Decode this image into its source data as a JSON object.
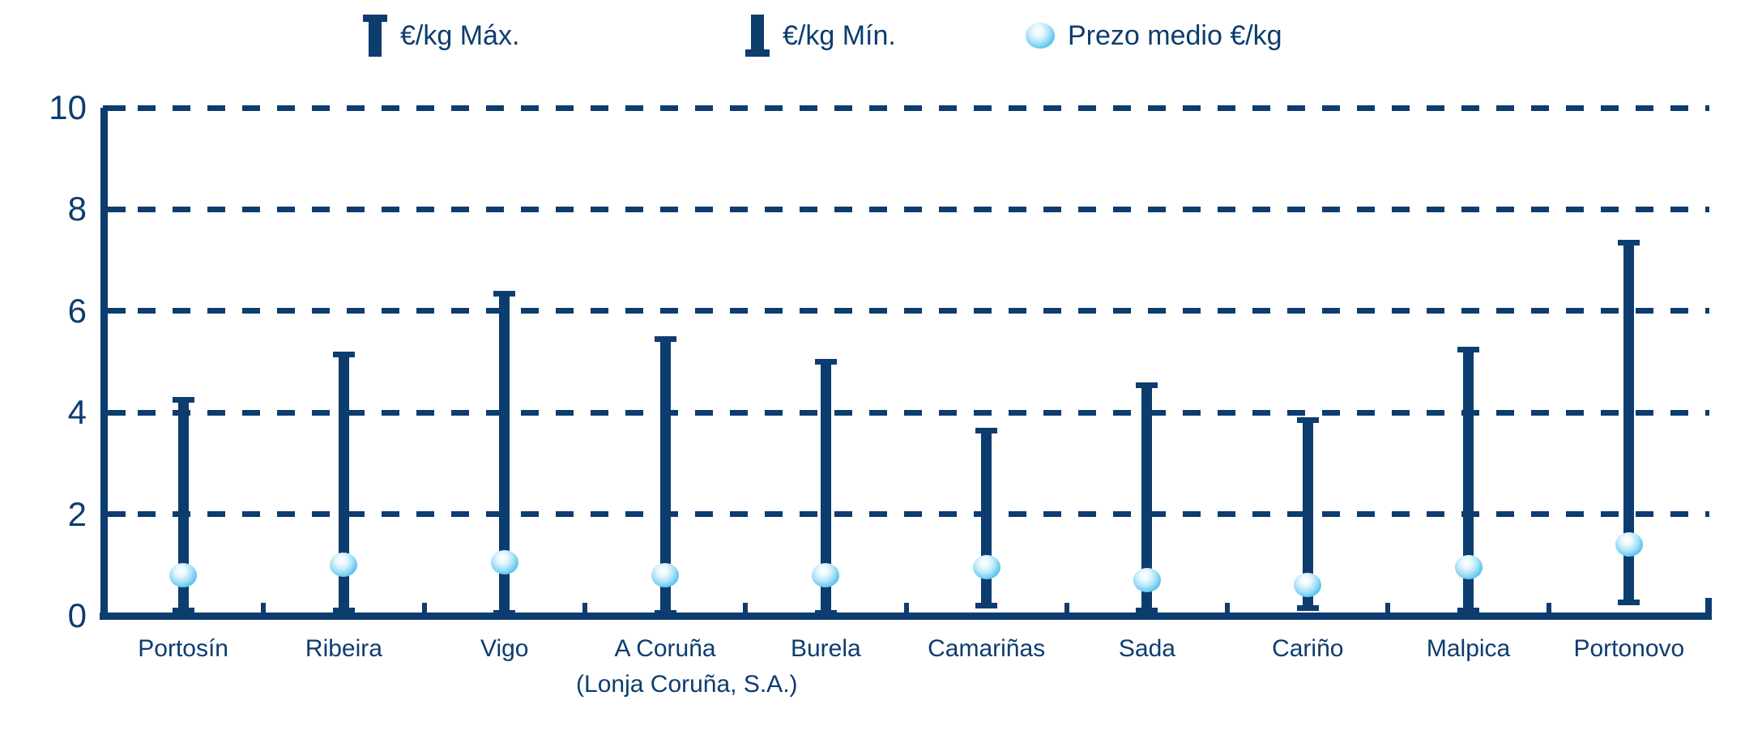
{
  "legend": [
    {
      "icon": "max-range-icon",
      "label": "€/kg Máx."
    },
    {
      "icon": "min-range-icon",
      "label": "€/kg Mín."
    },
    {
      "icon": "mean-sphere-icon",
      "label": "Prezo medio €/kg"
    }
  ],
  "colors": {
    "navy": "#0d3c6f",
    "sphere_edge": "#29abe2",
    "sphere_highlight": "#ffffff"
  },
  "chart_data": {
    "type": "bar",
    "subtype": "min-max-range-with-mean",
    "title": "",
    "xlabel": "",
    "ylabel": "",
    "ylim": [
      0,
      10
    ],
    "yticks": [
      0,
      2,
      4,
      6,
      8,
      10
    ],
    "grid": "horizontal-dashed",
    "legend_position": "top",
    "categories": [
      {
        "label": "Portosín"
      },
      {
        "label": "Ribeira"
      },
      {
        "label": "Vigo"
      },
      {
        "label": "A Coruña",
        "sublabel": "(Lonja Coruña, S.A.)"
      },
      {
        "label": "Burela"
      },
      {
        "label": "Camariñas"
      },
      {
        "label": "Sada"
      },
      {
        "label": "Cariño"
      },
      {
        "label": "Malpica"
      },
      {
        "label": "Portonovo"
      }
    ],
    "series": [
      {
        "name": "€/kg Máx.",
        "values": [
          4.3,
          5.2,
          6.4,
          5.5,
          5.05,
          3.7,
          4.6,
          3.9,
          5.3,
          7.4
        ]
      },
      {
        "name": "€/kg Mín.",
        "values": [
          0.05,
          0.05,
          0.0,
          0.0,
          0.0,
          0.15,
          0.05,
          0.1,
          0.05,
          0.2
        ]
      },
      {
        "name": "Prezo medio €/kg",
        "values": [
          0.8,
          1.0,
          1.05,
          0.8,
          0.8,
          0.95,
          0.7,
          0.6,
          0.95,
          1.4
        ]
      }
    ]
  }
}
